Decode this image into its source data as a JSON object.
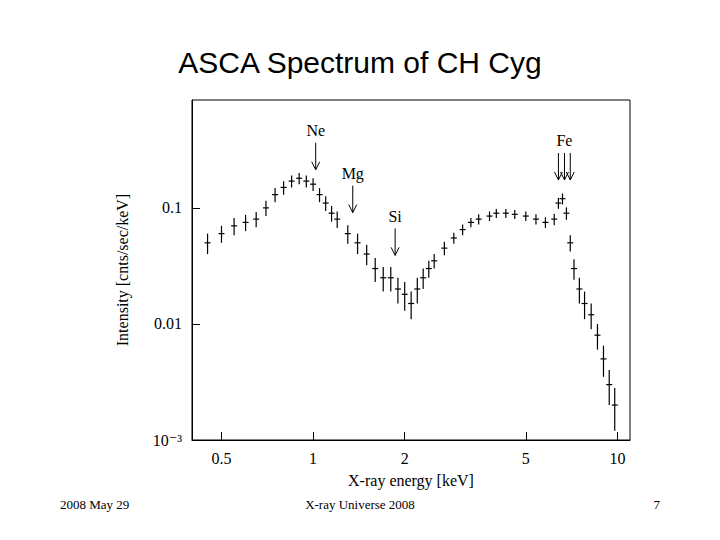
{
  "slide": {
    "title": "ASCA Spectrum of CH Cyg",
    "footer": {
      "left": "2008 May 29",
      "center": "X-ray Universe 2008",
      "right": "7"
    }
  },
  "chart_data": {
    "type": "scatter",
    "marker": "cross",
    "x_label": "X-ray energy [keV]",
    "y_label": "Intensity [cnts/sec/keV]",
    "log": true,
    "grid": false,
    "xlim": [
      0.4,
      11
    ],
    "xticks": [
      0.5,
      1,
      2,
      5,
      10
    ],
    "ylim": [
      0.001,
      0.85
    ],
    "yticks": [
      {
        "value": 0.001,
        "label": "10⁻³"
      },
      0.01,
      0.1
    ],
    "x": [
      0.45,
      0.5,
      0.55,
      0.6,
      0.65,
      0.7,
      0.75,
      0.8,
      0.85,
      0.9,
      0.95,
      1.0,
      1.05,
      1.1,
      1.15,
      1.2,
      1.3,
      1.4,
      1.5,
      1.6,
      1.7,
      1.8,
      1.9,
      2.0,
      2.1,
      2.2,
      2.3,
      2.4,
      2.5,
      2.7,
      2.9,
      3.1,
      3.3,
      3.5,
      3.8,
      4.0,
      4.3,
      4.6,
      5.0,
      5.4,
      5.8,
      6.2,
      6.4,
      6.6,
      6.8,
      7.0,
      7.2,
      7.5,
      7.8,
      8.2,
      8.6,
      9.0,
      9.4,
      9.8
    ],
    "values": [
      0.05,
      0.06,
      0.07,
      0.075,
      0.08,
      0.1,
      0.13,
      0.15,
      0.17,
      0.18,
      0.17,
      0.16,
      0.13,
      0.11,
      0.09,
      0.08,
      0.06,
      0.05,
      0.04,
      0.03,
      0.025,
      0.025,
      0.02,
      0.018,
      0.015,
      0.02,
      0.025,
      0.03,
      0.035,
      0.045,
      0.055,
      0.065,
      0.075,
      0.08,
      0.085,
      0.09,
      0.09,
      0.088,
      0.085,
      0.08,
      0.075,
      0.08,
      0.11,
      0.12,
      0.09,
      0.05,
      0.03,
      0.02,
      0.015,
      0.012,
      0.008,
      0.005,
      0.003,
      0.002
    ],
    "errors": [
      0.01,
      0.01,
      0.012,
      0.012,
      0.012,
      0.015,
      0.018,
      0.02,
      0.02,
      0.02,
      0.02,
      0.02,
      0.018,
      0.016,
      0.014,
      0.013,
      0.011,
      0.01,
      0.008,
      0.007,
      0.006,
      0.006,
      0.005,
      0.005,
      0.004,
      0.005,
      0.005,
      0.005,
      0.005,
      0.006,
      0.006,
      0.007,
      0.007,
      0.008,
      0.008,
      0.008,
      0.008,
      0.008,
      0.008,
      0.008,
      0.008,
      0.009,
      0.012,
      0.013,
      0.011,
      0.008,
      0.006,
      0.005,
      0.004,
      0.003,
      0.002,
      0.0015,
      0.001,
      0.0008
    ],
    "annotations": [
      {
        "text": "Ne",
        "x": [
          1.02
        ],
        "y": 0.213
      },
      {
        "text": "Mg",
        "x": [
          1.35
        ],
        "y": 0.091
      },
      {
        "text": "Si",
        "x": [
          1.86
        ],
        "y": 0.039
      },
      {
        "text": "Fe",
        "x": [
          6.4,
          6.7,
          7.0
        ],
        "y": 0.174
      }
    ]
  }
}
